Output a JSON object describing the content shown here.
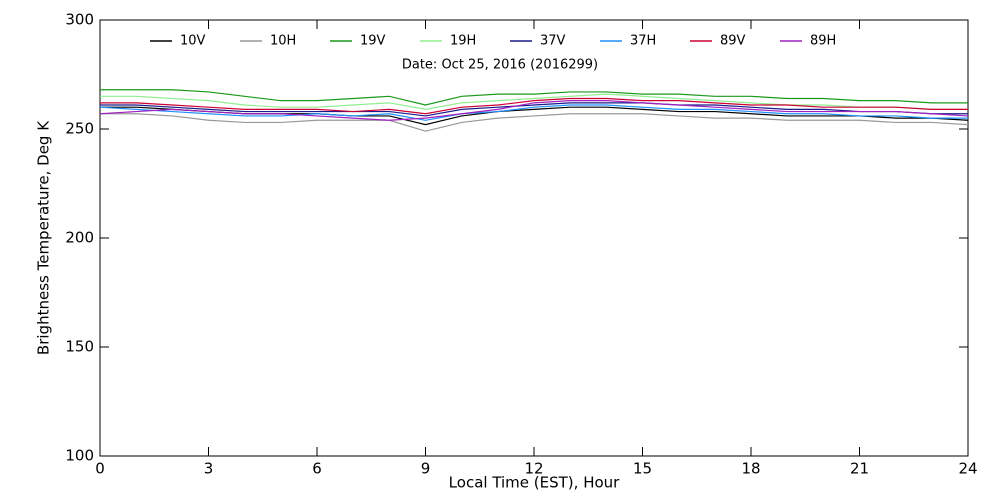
{
  "chart_data": {
    "type": "line",
    "annotation": "Date: Oct 25, 2016 (2016299)",
    "xlabel": "Local Time (EST), Hour",
    "ylabel": "Brightness Temperature, Deg K",
    "xlim": [
      0,
      24
    ],
    "xticks": [
      0,
      3,
      6,
      9,
      12,
      15,
      18,
      21,
      24
    ],
    "ylim": [
      100,
      300
    ],
    "yticks": [
      100,
      150,
      200,
      250,
      300
    ],
    "x": [
      0,
      1,
      2,
      3,
      4,
      5,
      6,
      7,
      8,
      9,
      10,
      11,
      12,
      13,
      14,
      15,
      16,
      17,
      18,
      19,
      20,
      21,
      22,
      23,
      24
    ],
    "series": [
      {
        "name": "10V",
        "color": "#000000",
        "values": [
          260,
          260,
          259,
          258,
          257,
          257,
          257,
          256,
          256,
          252,
          256,
          258,
          259,
          260,
          260,
          259,
          258,
          258,
          257,
          256,
          256,
          256,
          255,
          255,
          254
        ]
      },
      {
        "name": "10H",
        "color": "#999999",
        "values": [
          257,
          257,
          256,
          254,
          253,
          253,
          254,
          254,
          254,
          249,
          253,
          255,
          256,
          257,
          257,
          257,
          256,
          255,
          255,
          254,
          254,
          254,
          253,
          253,
          252
        ]
      },
      {
        "name": "19V",
        "color": "#1a9a1a",
        "values": [
          268,
          268,
          268,
          267,
          265,
          263,
          263,
          264,
          265,
          261,
          265,
          266,
          266,
          267,
          267,
          266,
          266,
          265,
          265,
          264,
          264,
          263,
          263,
          262,
          262
        ]
      },
      {
        "name": "19H",
        "color": "#90ee90",
        "values": [
          265,
          265,
          264,
          263,
          261,
          260,
          260,
          261,
          262,
          259,
          262,
          263,
          264,
          265,
          266,
          265,
          264,
          263,
          262,
          261,
          261,
          260,
          260,
          259,
          259
        ]
      },
      {
        "name": "37V",
        "color": "#1a1a8c",
        "values": [
          261,
          261,
          260,
          259,
          258,
          258,
          258,
          258,
          258,
          256,
          259,
          260,
          261,
          262,
          262,
          262,
          261,
          261,
          260,
          259,
          259,
          258,
          258,
          257,
          257
        ]
      },
      {
        "name": "37H",
        "color": "#1e90ff",
        "values": [
          260,
          259,
          258,
          257,
          256,
          256,
          257,
          256,
          257,
          254,
          257,
          258,
          260,
          261,
          261,
          260,
          259,
          259,
          258,
          257,
          257,
          256,
          256,
          255,
          255
        ]
      },
      {
        "name": "89V",
        "color": "#cc0033",
        "values": [
          262,
          262,
          261,
          260,
          259,
          259,
          259,
          258,
          259,
          257,
          260,
          261,
          263,
          264,
          264,
          263,
          263,
          262,
          261,
          261,
          260,
          260,
          260,
          259,
          259
        ]
      },
      {
        "name": "89H",
        "color": "#a020c0",
        "values": [
          257,
          258,
          259,
          258,
          257,
          257,
          256,
          255,
          254,
          255,
          257,
          259,
          262,
          263,
          263,
          262,
          261,
          260,
          259,
          258,
          258,
          258,
          258,
          257,
          256
        ]
      }
    ]
  }
}
